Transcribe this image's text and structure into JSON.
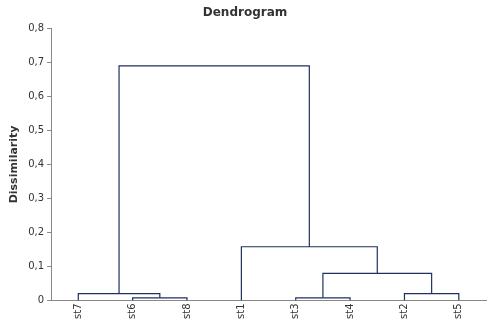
{
  "chart_data": {
    "type": "dendrogram",
    "title": "Dendrogram",
    "y_label": "Dissimilarity",
    "categories": [
      "st7",
      "st6",
      "st8",
      "st1",
      "st3",
      "st4",
      "st2",
      "st5"
    ],
    "merges": [
      {
        "left": [
          "st6"
        ],
        "right": [
          "st8"
        ],
        "height": 0.008
      },
      {
        "left": [
          "st7"
        ],
        "right": [
          "st6",
          "st8"
        ],
        "height": 0.02
      },
      {
        "left": [
          "st3"
        ],
        "right": [
          "st4"
        ],
        "height": 0.008
      },
      {
        "left": [
          "st2"
        ],
        "right": [
          "st5"
        ],
        "height": 0.02
      },
      {
        "left": [
          "st3",
          "st4"
        ],
        "right": [
          "st2",
          "st5"
        ],
        "height": 0.08
      },
      {
        "left": [
          "st1"
        ],
        "right": [
          "st3",
          "st4",
          "st2",
          "st5"
        ],
        "height": 0.158
      },
      {
        "left": [
          "st7",
          "st6",
          "st8"
        ],
        "right": [
          "st1",
          "st3",
          "st4",
          "st2",
          "st5"
        ],
        "height": 0.69
      }
    ],
    "color": "#1f3060",
    "ylim": [
      0,
      0.8
    ],
    "yticks": [
      0,
      {
        "value": 0.1,
        "label": "0,1"
      },
      {
        "value": 0.2,
        "label": "0,2"
      },
      {
        "value": 0.3,
        "label": "0,3"
      },
      {
        "value": 0.4,
        "label": "0,4"
      },
      {
        "value": 0.5,
        "label": "0,5"
      },
      {
        "value": 0.6,
        "label": "0,6"
      },
      {
        "value": 0.7,
        "label": "0,7"
      },
      {
        "value": 0.8,
        "label": "0,8"
      }
    ],
    "grid": false
  }
}
